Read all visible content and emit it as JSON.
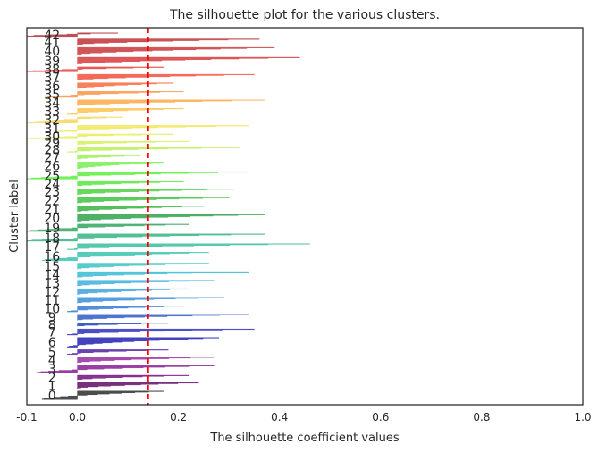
{
  "chart_data": {
    "type": "silhouette",
    "title": "The silhouette plot for the various clusters.",
    "xlabel": "The silhouette coefficient values",
    "ylabel": "Cluster label",
    "xlim": [
      -0.1,
      1.0
    ],
    "xticks": [
      -0.1,
      0.0,
      0.2,
      0.4,
      0.6,
      0.8,
      1.0
    ],
    "xtick_labels": [
      "-0.1",
      "0.0",
      "0.2",
      "0.4",
      "0.6",
      "0.8",
      "1.0"
    ],
    "yticks": [],
    "grid": false,
    "average_silhouette_score": 0.14,
    "average_line_color": "#ff0000",
    "clusters": [
      {
        "label": "0",
        "max": 0.17,
        "min": -0.07,
        "count": 14
      },
      {
        "label": "1",
        "max": 0.24,
        "min": 0.0,
        "count": 10
      },
      {
        "label": "2",
        "max": 0.22,
        "min": 0.0,
        "count": 8
      },
      {
        "label": "3",
        "max": 0.27,
        "min": -0.08,
        "count": 12
      },
      {
        "label": "4",
        "max": 0.27,
        "min": 0.0,
        "count": 10
      },
      {
        "label": "5",
        "max": 0.18,
        "min": -0.02,
        "count": 8
      },
      {
        "label": "6",
        "max": 0.28,
        "min": -0.02,
        "count": 16
      },
      {
        "label": "7",
        "max": 0.35,
        "min": -0.02,
        "count": 10
      },
      {
        "label": "8",
        "max": 0.18,
        "min": 0.0,
        "count": 6
      },
      {
        "label": "9",
        "max": 0.34,
        "min": 0.0,
        "count": 10
      },
      {
        "label": "10",
        "max": 0.21,
        "min": -0.02,
        "count": 10
      },
      {
        "label": "11",
        "max": 0.29,
        "min": 0.0,
        "count": 10
      },
      {
        "label": "12",
        "max": 0.22,
        "min": 0.0,
        "count": 10
      },
      {
        "label": "13",
        "max": 0.27,
        "min": 0.0,
        "count": 10
      },
      {
        "label": "14",
        "max": 0.34,
        "min": 0.0,
        "count": 10
      },
      {
        "label": "15",
        "max": 0.26,
        "min": 0.0,
        "count": 10
      },
      {
        "label": "16",
        "max": 0.26,
        "min": -0.07,
        "count": 14
      },
      {
        "label": "17",
        "max": 0.46,
        "min": -0.02,
        "count": 10
      },
      {
        "label": "18",
        "max": 0.37,
        "min": -0.1,
        "count": 12
      },
      {
        "label": "19",
        "max": 0.22,
        "min": -0.1,
        "count": 12
      },
      {
        "label": "20",
        "max": 0.37,
        "min": 0.0,
        "count": 12
      },
      {
        "label": "21",
        "max": 0.25,
        "min": 0.0,
        "count": 10
      },
      {
        "label": "22",
        "max": 0.3,
        "min": 0.0,
        "count": 10
      },
      {
        "label": "23",
        "max": 0.31,
        "min": 0.0,
        "count": 10
      },
      {
        "label": "24",
        "max": 0.21,
        "min": 0.0,
        "count": 8
      },
      {
        "label": "25",
        "max": 0.34,
        "min": -0.1,
        "count": 12
      },
      {
        "label": "26",
        "max": 0.17,
        "min": 0.0,
        "count": 12
      },
      {
        "label": "27",
        "max": 0.16,
        "min": 0.0,
        "count": 8
      },
      {
        "label": "28",
        "max": 0.32,
        "min": -0.02,
        "count": 8
      },
      {
        "label": "29",
        "max": 0.22,
        "min": 0.0,
        "count": 6
      },
      {
        "label": "30",
        "max": 0.19,
        "min": -0.1,
        "count": 8
      },
      {
        "label": "31",
        "max": 0.34,
        "min": -0.04,
        "count": 10
      },
      {
        "label": "32",
        "max": 0.09,
        "min": -0.1,
        "count": 10
      },
      {
        "label": "33",
        "max": 0.21,
        "min": -0.02,
        "count": 10
      },
      {
        "label": "34",
        "max": 0.37,
        "min": 0.0,
        "count": 10
      },
      {
        "label": "35",
        "max": 0.21,
        "min": -0.06,
        "count": 10
      },
      {
        "label": "36",
        "max": 0.19,
        "min": 0.0,
        "count": 10
      },
      {
        "label": "37",
        "max": 0.35,
        "min": 0.0,
        "count": 10
      },
      {
        "label": "38",
        "max": 0.17,
        "min": -0.1,
        "count": 8
      },
      {
        "label": "39",
        "max": 0.44,
        "min": 0.0,
        "count": 12
      },
      {
        "label": "40",
        "max": 0.39,
        "min": 0.0,
        "count": 12
      },
      {
        "label": "41",
        "max": 0.36,
        "min": 0.0,
        "count": 10
      },
      {
        "label": "42",
        "max": 0.08,
        "min": -0.1,
        "count": 6
      }
    ],
    "colors": [
      "#3a3a3a",
      "#6a1a6e",
      "#7a1f85",
      "#8e2a9a",
      "#9c39a6",
      "#5a2ea8",
      "#2f2fb8",
      "#3a3ac0",
      "#2d4fbe",
      "#3a66c8",
      "#3f82d8",
      "#4596dc",
      "#4aa6de",
      "#48b4dc",
      "#44c0d6",
      "#46c6c8",
      "#44c6b4",
      "#44c2a4",
      "#40b88c",
      "#3eaa6c",
      "#3ca858",
      "#42b84a",
      "#4ac64a",
      "#55d44a",
      "#5ee84a",
      "#66f04a",
      "#7ef05a",
      "#a2f05e",
      "#c0f060",
      "#d8f064",
      "#e8ee64",
      "#f2e860",
      "#f8d860",
      "#fcc658",
      "#fcae52",
      "#fc9a4e",
      "#f8724a",
      "#f25a48",
      "#e64a48",
      "#d84648",
      "#cc4246",
      "#c23e44",
      "#b83a42"
    ]
  }
}
